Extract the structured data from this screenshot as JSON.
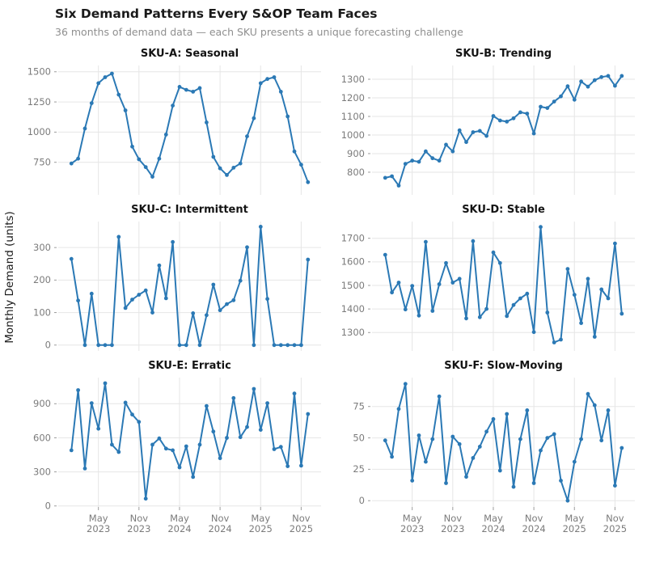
{
  "header": {
    "title": "Six Demand Patterns Every S&OP Team Faces",
    "subtitle": "36 months of demand data — each SKU presents a unique forecasting challenge"
  },
  "y_axis_label": "Monthly Demand (units)",
  "style": {
    "line_color": "#2b79b5",
    "grid_color": "#e6e6e6",
    "axis_text_color": "#7b7b7b",
    "tick_mark_color": "#9c9c9c",
    "title_color": "#1a1a1a",
    "subtitle_color": "#8f8f8f",
    "background_color": "#ffffff"
  },
  "chart_data": {
    "type": "line",
    "layout": "small-multiples 3 rows x 2 cols, shared x axis, grid on, no legend",
    "categories": [
      "Jan 2023",
      "Feb 2023",
      "Mar 2023",
      "Apr 2023",
      "May 2023",
      "Jun 2023",
      "Jul 2023",
      "Aug 2023",
      "Sep 2023",
      "Oct 2023",
      "Nov 2023",
      "Dec 2023",
      "Jan 2024",
      "Feb 2024",
      "Mar 2024",
      "Apr 2024",
      "May 2024",
      "Jun 2024",
      "Jul 2024",
      "Aug 2024",
      "Sep 2024",
      "Oct 2024",
      "Nov 2024",
      "Dec 2024",
      "Jan 2025",
      "Feb 2025",
      "Mar 2025",
      "Apr 2025",
      "May 2025",
      "Jun 2025",
      "Jul 2025",
      "Aug 2025",
      "Sep 2025",
      "Oct 2025",
      "Nov 2025",
      "Dec 2025"
    ],
    "x_tick_indices": [
      4,
      10,
      16,
      22,
      28,
      34
    ],
    "x_tick_labels": [
      [
        "May",
        "2023"
      ],
      [
        "Nov",
        "2023"
      ],
      [
        "May",
        "2024"
      ],
      [
        "Nov",
        "2024"
      ],
      [
        "May",
        "2025"
      ],
      [
        "Nov",
        "2025"
      ]
    ],
    "ylabel": "Monthly Demand (units)",
    "panels": [
      {
        "title": "SKU-A: Seasonal",
        "y_ticks": [
          750,
          1000,
          1250,
          1500
        ],
        "ylim": [
          480,
          1552
        ],
        "values": [
          740,
          780,
          1030,
          1240,
          1405,
          1455,
          1485,
          1310,
          1180,
          880,
          775,
          710,
          630,
          780,
          980,
          1220,
          1375,
          1350,
          1335,
          1365,
          1080,
          795,
          700,
          645,
          705,
          740,
          965,
          1115,
          1405,
          1440,
          1455,
          1335,
          1130,
          840,
          730,
          585
        ]
      },
      {
        "title": "SKU-B: Trending",
        "y_ticks": [
          800,
          900,
          1000,
          1100,
          1200,
          1300
        ],
        "ylim": [
          678,
          1374
        ],
        "values": [
          770,
          778,
          728,
          845,
          862,
          856,
          912,
          875,
          862,
          948,
          912,
          1025,
          962,
          1015,
          1022,
          995,
          1102,
          1078,
          1072,
          1090,
          1122,
          1115,
          1008,
          1152,
          1145,
          1180,
          1208,
          1262,
          1190,
          1288,
          1260,
          1295,
          1312,
          1318,
          1265,
          1318
        ]
      },
      {
        "title": "SKU-C: Intermittent",
        "y_ticks": [
          0,
          100,
          200,
          300
        ],
        "ylim": [
          -18,
          380
        ],
        "values": [
          265,
          137,
          0,
          158,
          0,
          0,
          0,
          333,
          114,
          140,
          155,
          168,
          100,
          245,
          144,
          317,
          0,
          0,
          98,
          0,
          92,
          186,
          107,
          126,
          138,
          198,
          301,
          0,
          364,
          142,
          0,
          0,
          0,
          0,
          0,
          263
        ]
      },
      {
        "title": "SKU-D: Stable",
        "y_ticks": [
          1300,
          1400,
          1500,
          1600,
          1700
        ],
        "ylim": [
          1222,
          1771
        ],
        "values": [
          1630,
          1470,
          1512,
          1398,
          1498,
          1372,
          1685,
          1392,
          1505,
          1595,
          1512,
          1528,
          1360,
          1688,
          1365,
          1400,
          1640,
          1595,
          1370,
          1417,
          1445,
          1465,
          1302,
          1748,
          1385,
          1258,
          1270,
          1570,
          1460,
          1340,
          1528,
          1282,
          1483,
          1445,
          1678,
          1380
        ]
      },
      {
        "title": "SKU-E: Erratic",
        "y_ticks": [
          0,
          300,
          600,
          900
        ],
        "ylim": [
          -9,
          1130
        ],
        "values": [
          490,
          1020,
          330,
          905,
          680,
          1080,
          540,
          475,
          910,
          805,
          740,
          64,
          540,
          595,
          505,
          490,
          340,
          525,
          255,
          540,
          880,
          655,
          420,
          600,
          950,
          605,
          695,
          1030,
          670,
          905,
          500,
          520,
          350,
          990,
          355,
          810
        ]
      },
      {
        "title": "SKU-F: Slow-Moving",
        "y_ticks": [
          0,
          25,
          50,
          75
        ],
        "ylim": [
          -5,
          98
        ],
        "values": [
          48,
          35,
          73,
          93,
          16,
          52,
          31,
          49,
          83,
          14,
          51,
          45,
          19,
          34,
          43,
          55,
          65,
          24,
          69,
          11,
          49,
          72,
          14,
          40,
          50,
          53,
          16,
          0,
          31,
          49,
          85,
          76,
          48,
          72,
          12,
          42
        ]
      }
    ]
  }
}
